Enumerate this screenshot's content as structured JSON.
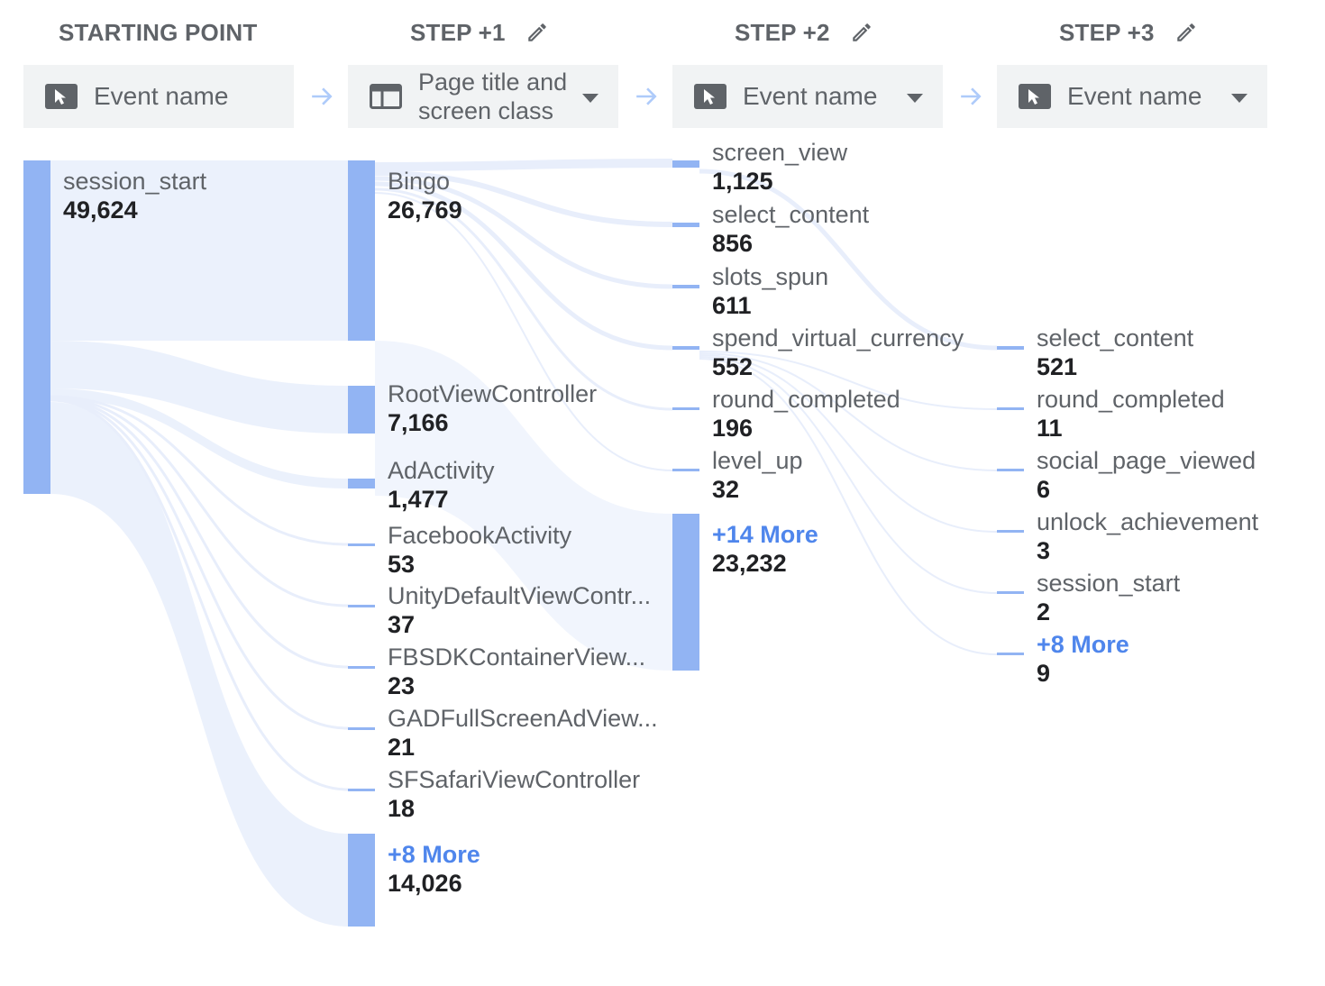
{
  "columns": [
    {
      "title": "STARTING POINT",
      "dimension": "Event name",
      "dimension_icon": "cursor-icon",
      "editable": false
    },
    {
      "title": "STEP +1",
      "dimension": "Page title and\nscreen class",
      "dimension_icon": "screen-icon",
      "editable": true
    },
    {
      "title": "STEP +2",
      "dimension": "Event name",
      "dimension_icon": "cursor-icon",
      "editable": true
    },
    {
      "title": "STEP +3",
      "dimension": "Event name",
      "dimension_icon": "cursor-icon",
      "editable": true
    }
  ],
  "nodes": {
    "start": [
      {
        "name": "session_start",
        "value": "49,624"
      }
    ],
    "step1": [
      {
        "name": "Bingo",
        "value": "26,769"
      },
      {
        "name": "RootViewController",
        "value": "7,166"
      },
      {
        "name": "AdActivity",
        "value": "1,477"
      },
      {
        "name": "FacebookActivity",
        "value": "53"
      },
      {
        "name": "UnityDefaultViewContr...",
        "value": "37"
      },
      {
        "name": "FBSDKContainerView...",
        "value": "23"
      },
      {
        "name": "GADFullScreenAdView...",
        "value": "21"
      },
      {
        "name": "SFSafariViewController",
        "value": "18"
      },
      {
        "name": "+8 More",
        "value": "14,026",
        "more": true
      }
    ],
    "step2": [
      {
        "name": "screen_view",
        "value": "1,125"
      },
      {
        "name": "select_content",
        "value": "856"
      },
      {
        "name": "slots_spun",
        "value": "611"
      },
      {
        "name": "spend_virtual_currency",
        "value": "552"
      },
      {
        "name": "round_completed",
        "value": "196"
      },
      {
        "name": "level_up",
        "value": "32"
      },
      {
        "name": "+14 More",
        "value": "23,232",
        "more": true
      }
    ],
    "step3": [
      {
        "name": "select_content",
        "value": "521"
      },
      {
        "name": "round_completed",
        "value": "11"
      },
      {
        "name": "social_page_viewed",
        "value": "6"
      },
      {
        "name": "unlock_achievement",
        "value": "3"
      },
      {
        "name": "session_start",
        "value": "2"
      },
      {
        "name": "+8 More",
        "value": "9",
        "more": true
      }
    ]
  },
  "colors": {
    "node": "#92b4f3",
    "flow": "#e8eefb",
    "more_link": "#4f86ec",
    "selector_bg": "#f1f3f4",
    "arrow": "#aecbfa"
  }
}
